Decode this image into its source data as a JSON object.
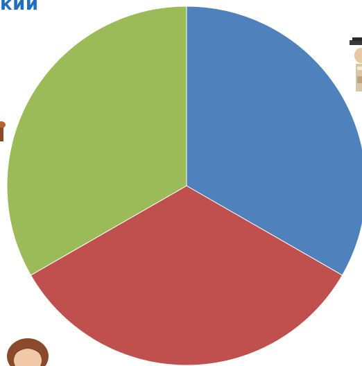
{
  "header": {
    "title_fragment": "кий"
  },
  "chart_data": {
    "type": "pie",
    "title": "",
    "start_angle_deg": 0,
    "direction": "clockwise",
    "legend": "none",
    "slices": [
      {
        "label": "",
        "value": 33.3,
        "color": "#4f81bd"
      },
      {
        "label": "",
        "value": 33.4,
        "color": "#c0504d"
      },
      {
        "label": "",
        "value": 33.3,
        "color": "#9bbb59"
      }
    ]
  },
  "decorations": [
    {
      "icon": "graduate-figure-icon"
    },
    {
      "icon": "person-figure-left-icon"
    },
    {
      "icon": "woman-avatar-icon"
    }
  ]
}
